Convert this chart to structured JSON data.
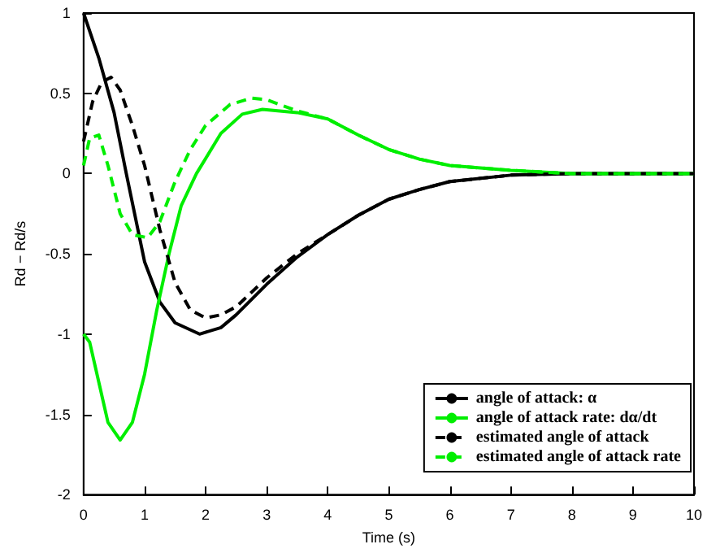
{
  "chart_data": {
    "type": "line",
    "xlabel": "Time (s)",
    "ylabel": "Rd − Rd/s",
    "xlim": [
      0,
      10
    ],
    "xticks": [
      0,
      1,
      2,
      3,
      4,
      5,
      6,
      7,
      8,
      9,
      10
    ],
    "ylim": [
      -2,
      1
    ],
    "yticks": [
      -2,
      -1.5,
      -1,
      -0.5,
      0,
      0.5,
      1
    ],
    "grid": false,
    "legend": "bottom right",
    "series": [
      {
        "name": "angle of attack: α",
        "color": "#000000",
        "line_style": "solid",
        "x": [
          0,
          0.25,
          0.5,
          0.7,
          1,
          1.25,
          1.5,
          1.9,
          2.25,
          2.5,
          3,
          3.5,
          4,
          4.5,
          5,
          5.5,
          6,
          7,
          8,
          10
        ],
        "values": [
          1,
          0.72,
          0.38,
          0,
          -0.55,
          -0.8,
          -0.93,
          -1,
          -0.96,
          -0.88,
          -0.69,
          -0.52,
          -0.38,
          -0.26,
          -0.16,
          -0.1,
          -0.05,
          -0.01,
          0,
          0
        ]
      },
      {
        "name": "angle of attack rate: dα/dt",
        "color": "#00ee00",
        "line_style": "solid",
        "x": [
          0,
          0.1,
          0.25,
          0.4,
          0.6,
          0.8,
          1,
          1.2,
          1.4,
          1.6,
          1.85,
          2.25,
          2.6,
          2.93,
          3.5,
          4,
          4.5,
          5,
          5.5,
          6,
          7,
          8,
          10
        ],
        "values": [
          -1,
          -1.05,
          -1.3,
          -1.55,
          -1.66,
          -1.55,
          -1.25,
          -0.85,
          -0.5,
          -0.2,
          0,
          0.25,
          0.37,
          0.4,
          0.38,
          0.34,
          0.24,
          0.15,
          0.09,
          0.05,
          0.02,
          0,
          0
        ]
      },
      {
        "name": "estimated angle of attack",
        "color": "#000000",
        "line_style": "dashed",
        "x": [
          0,
          0.15,
          0.3,
          0.45,
          0.6,
          0.8,
          1,
          1.25,
          1.5,
          1.75,
          2,
          2.25,
          2.5,
          3,
          3.5,
          4,
          4.5,
          5,
          5.5,
          6,
          7,
          8,
          10
        ],
        "values": [
          0.2,
          0.45,
          0.57,
          0.6,
          0.52,
          0.3,
          0.05,
          -0.35,
          -0.68,
          -0.85,
          -0.9,
          -0.88,
          -0.83,
          -0.65,
          -0.5,
          -0.38,
          -0.26,
          -0.16,
          -0.1,
          -0.05,
          -0.01,
          0,
          0
        ]
      },
      {
        "name": "estimated angle of attack rate",
        "color": "#00ee00",
        "line_style": "dashed",
        "x": [
          0,
          0.1,
          0.25,
          0.4,
          0.6,
          0.8,
          1.05,
          1.25,
          1.5,
          1.75,
          2,
          2.4,
          2.75,
          3,
          3.5,
          4,
          4.5,
          5,
          5.5,
          6,
          7,
          8,
          10
        ],
        "values": [
          0.05,
          0.22,
          0.24,
          0.05,
          -0.25,
          -0.38,
          -0.4,
          -0.3,
          -0.05,
          0.15,
          0.3,
          0.43,
          0.47,
          0.46,
          0.39,
          0.34,
          0.24,
          0.15,
          0.09,
          0.05,
          0.02,
          0,
          0
        ]
      }
    ]
  }
}
